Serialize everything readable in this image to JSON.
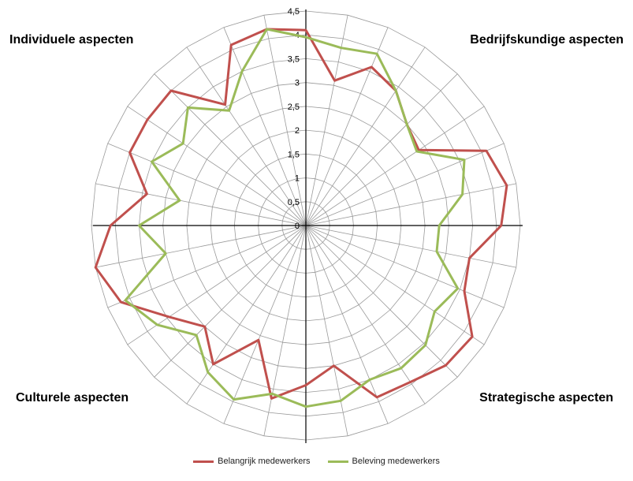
{
  "quadrants": {
    "top_left": "Individuele aspecten",
    "top_right": "Bedrijfskundige aspecten",
    "bottom_left": "Culturele aspecten",
    "bottom_right": "Strategische aspecten"
  },
  "chart_data": {
    "type": "radar",
    "axis_count": 32,
    "rmax": 4.5,
    "ticks": [
      0,
      0.5,
      1,
      1.5,
      2,
      2.5,
      3,
      3.5,
      4,
      4.5
    ],
    "tick_labels": [
      "0",
      "0,5",
      "1",
      "1,5",
      "2",
      "2,5",
      "3",
      "3,5",
      "4",
      "4,5"
    ],
    "grid": true,
    "legend_position": "bottom",
    "series": [
      {
        "name": "Belangrijk medewerkers",
        "color": "#c0504d",
        "values": [
          4.1,
          3.1,
          3.6,
          3.4,
          3.0,
          2.85,
          4.1,
          4.3,
          4.1,
          3.5,
          3.6,
          4.2,
          4.15,
          3.95,
          3.9,
          3.0,
          3.35,
          3.7,
          2.6,
          3.5,
          3.0,
          3.45,
          4.2,
          4.5,
          4.1,
          3.4,
          4.0,
          4.0,
          4.0,
          3.05,
          4.1,
          4.2
        ]
      },
      {
        "name": "Beleving medewerkers",
        "color": "#9bbb59",
        "values": [
          3.95,
          3.8,
          3.9,
          3.4,
          3.0,
          2.8,
          3.6,
          3.35,
          2.8,
          2.8,
          3.45,
          3.25,
          3.55,
          3.6,
          3.5,
          3.75,
          3.8,
          3.6,
          3.95,
          3.7,
          3.25,
          3.75,
          4.1,
          3.0,
          3.5,
          2.7,
          3.5,
          3.1,
          3.5,
          2.9,
          3.5,
          4.2
        ]
      }
    ]
  }
}
